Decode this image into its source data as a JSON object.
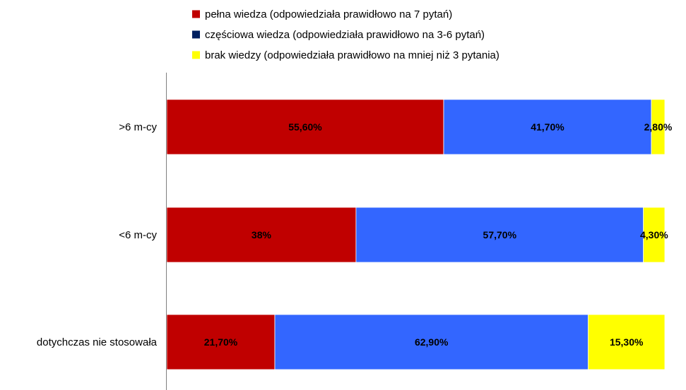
{
  "chart_data": {
    "type": "bar",
    "orientation": "horizontal",
    "stacked": true,
    "categories": [
      ">6 m-cy",
      "<6 m-cy",
      "dotychczas nie stosowała"
    ],
    "series": [
      {
        "name": "pełna wiedza (odpowiedziała prawidłowo na 7 pytań)",
        "color": "#C00000",
        "legend_color": "#C00000",
        "values": [
          55.6,
          38,
          21.7
        ],
        "labels": [
          "55,60%",
          "38%",
          "21,70%"
        ]
      },
      {
        "name": "częściowa wiedza (odpowiedziała prawidłowo na 3-6 pytań)",
        "color": "#3366FF",
        "legend_color": "#002060",
        "values": [
          41.7,
          57.7,
          62.9
        ],
        "labels": [
          "41,70%",
          "57,70%",
          "62,90%"
        ]
      },
      {
        "name": "brak wiedzy (odpowiedziała prawidłowo na mniej niż 3 pytania)",
        "color": "#FFFF00",
        "legend_color": "#FFFF00",
        "values": [
          2.8,
          4.3,
          15.3
        ],
        "labels": [
          "2,80%",
          "4,30%",
          "15,30%"
        ]
      }
    ],
    "xlim": [
      0,
      100
    ],
    "grid": false,
    "legend_position": "top"
  }
}
